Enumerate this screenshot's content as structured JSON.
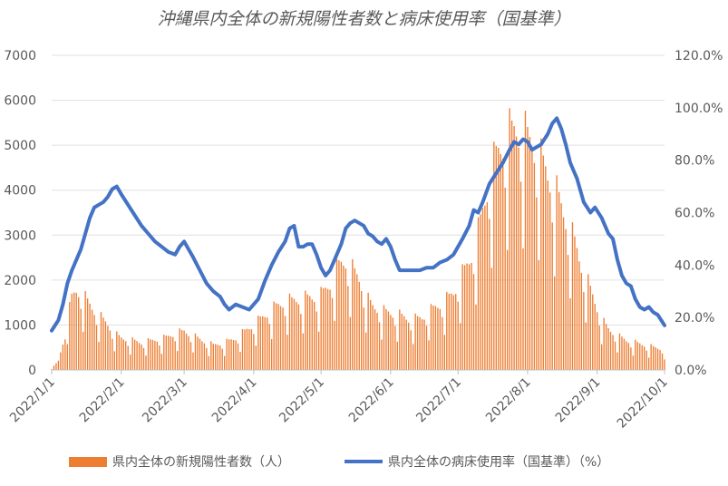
{
  "chart_data": {
    "type": "bar+line",
    "title": "沖縄県内全体の新規陽性者数と病床使用率（国基準）",
    "x_tick_labels": [
      "2022/1/1",
      "2022/2/1",
      "2022/3/1",
      "2022/4/1",
      "2022/5/1",
      "2022/6/1",
      "2022/7/1",
      "2022/8/1",
      "2022/9/1",
      "2022/10/1"
    ],
    "x_tick_days": [
      0,
      31,
      59,
      90,
      120,
      151,
      181,
      212,
      243,
      273
    ],
    "y_left": {
      "ticks": [
        "0",
        "1000",
        "2000",
        "3000",
        "4000",
        "5000",
        "6000",
        "7000"
      ],
      "lim": [
        0,
        7000
      ]
    },
    "y_right": {
      "ticks": [
        "0.0%",
        "20.0%",
        "40.0%",
        "60.0%",
        "80.0%",
        "100.0%",
        "120.0%"
      ],
      "lim": [
        0,
        1.2
      ]
    },
    "bar_series": {
      "name": "県内全体の新規陽性者数（人）",
      "color": "#ED7D31",
      "daily_base": [
        [
          0,
          30
        ],
        [
          3,
          200
        ],
        [
          5,
          600
        ],
        [
          7,
          1100
        ],
        [
          9,
          1600
        ],
        [
          11,
          1750
        ],
        [
          13,
          1700
        ],
        [
          16,
          1500
        ],
        [
          19,
          1300
        ],
        [
          22,
          1150
        ],
        [
          25,
          1000
        ],
        [
          28,
          800
        ],
        [
          31,
          700
        ],
        [
          36,
          650
        ],
        [
          40,
          600
        ],
        [
          45,
          650
        ],
        [
          50,
          700
        ],
        [
          55,
          800
        ],
        [
          59,
          850
        ],
        [
          63,
          750
        ],
        [
          67,
          650
        ],
        [
          72,
          550
        ],
        [
          77,
          600
        ],
        [
          82,
          700
        ],
        [
          86,
          850
        ],
        [
          90,
          1000
        ],
        [
          95,
          1200
        ],
        [
          100,
          1400
        ],
        [
          104,
          1500
        ],
        [
          110,
          1550
        ],
        [
          116,
          1600
        ],
        [
          120,
          1650
        ],
        [
          124,
          1900
        ],
        [
          128,
          2300
        ],
        [
          131,
          2400
        ],
        [
          134,
          2200
        ],
        [
          137,
          2000
        ],
        [
          140,
          1600
        ],
        [
          143,
          1400
        ],
        [
          147,
          1300
        ],
        [
          151,
          1250
        ],
        [
          155,
          1200
        ],
        [
          160,
          1100
        ],
        [
          165,
          1150
        ],
        [
          170,
          1350
        ],
        [
          175,
          1500
        ],
        [
          179,
          1700
        ],
        [
          182,
          2000
        ],
        [
          186,
          2400
        ],
        [
          189,
          2800
        ],
        [
          192,
          3500
        ],
        [
          195,
          4200
        ],
        [
          198,
          4700
        ],
        [
          201,
          5000
        ],
        [
          204,
          5200
        ],
        [
          207,
          5300
        ],
        [
          210,
          5200
        ],
        [
          212,
          5100
        ],
        [
          215,
          4900
        ],
        [
          218,
          4600
        ],
        [
          221,
          4300
        ],
        [
          224,
          4000
        ],
        [
          227,
          3600
        ],
        [
          230,
          3200
        ],
        [
          233,
          2800
        ],
        [
          236,
          2300
        ],
        [
          239,
          1900
        ],
        [
          242,
          1500
        ],
        [
          245,
          1100
        ],
        [
          248,
          900
        ],
        [
          252,
          750
        ],
        [
          256,
          650
        ],
        [
          260,
          600
        ],
        [
          264,
          550
        ],
        [
          268,
          500
        ],
        [
          273,
          450
        ]
      ],
      "weekly_pattern": [
        0.52,
        1.12,
        1.06,
        1.03,
        0.98,
        0.94,
        0.8
      ]
    },
    "line_series": {
      "name": "県内全体の病床使用率（国基準）（%）",
      "color": "#4472C4",
      "points": [
        [
          0,
          0.15
        ],
        [
          3,
          0.19
        ],
        [
          5,
          0.25
        ],
        [
          7,
          0.33
        ],
        [
          9,
          0.38
        ],
        [
          11,
          0.42
        ],
        [
          13,
          0.46
        ],
        [
          15,
          0.52
        ],
        [
          17,
          0.58
        ],
        [
          19,
          0.62
        ],
        [
          21,
          0.63
        ],
        [
          23,
          0.64
        ],
        [
          25,
          0.66
        ],
        [
          27,
          0.69
        ],
        [
          29,
          0.7
        ],
        [
          31,
          0.67
        ],
        [
          34,
          0.63
        ],
        [
          37,
          0.59
        ],
        [
          40,
          0.55
        ],
        [
          43,
          0.52
        ],
        [
          46,
          0.49
        ],
        [
          49,
          0.47
        ],
        [
          52,
          0.45
        ],
        [
          55,
          0.44
        ],
        [
          57,
          0.47
        ],
        [
          59,
          0.49
        ],
        [
          61,
          0.46
        ],
        [
          63,
          0.43
        ],
        [
          66,
          0.38
        ],
        [
          69,
          0.33
        ],
        [
          72,
          0.3
        ],
        [
          75,
          0.28
        ],
        [
          77,
          0.25
        ],
        [
          79,
          0.23
        ],
        [
          82,
          0.25
        ],
        [
          85,
          0.24
        ],
        [
          88,
          0.23
        ],
        [
          90,
          0.25
        ],
        [
          92,
          0.27
        ],
        [
          95,
          0.34
        ],
        [
          98,
          0.4
        ],
        [
          101,
          0.45
        ],
        [
          104,
          0.49
        ],
        [
          106,
          0.54
        ],
        [
          108,
          0.55
        ],
        [
          110,
          0.47
        ],
        [
          112,
          0.47
        ],
        [
          114,
          0.48
        ],
        [
          116,
          0.48
        ],
        [
          118,
          0.44
        ],
        [
          120,
          0.39
        ],
        [
          122,
          0.36
        ],
        [
          124,
          0.38
        ],
        [
          126,
          0.42
        ],
        [
          129,
          0.48
        ],
        [
          131,
          0.54
        ],
        [
          133,
          0.56
        ],
        [
          135,
          0.57
        ],
        [
          137,
          0.56
        ],
        [
          139,
          0.55
        ],
        [
          141,
          0.52
        ],
        [
          143,
          0.51
        ],
        [
          145,
          0.49
        ],
        [
          147,
          0.48
        ],
        [
          149,
          0.5
        ],
        [
          151,
          0.47
        ],
        [
          153,
          0.42
        ],
        [
          155,
          0.38
        ],
        [
          158,
          0.38
        ],
        [
          161,
          0.38
        ],
        [
          164,
          0.38
        ],
        [
          167,
          0.39
        ],
        [
          170,
          0.39
        ],
        [
          173,
          0.41
        ],
        [
          176,
          0.42
        ],
        [
          179,
          0.44
        ],
        [
          181,
          0.47
        ],
        [
          183,
          0.5
        ],
        [
          186,
          0.55
        ],
        [
          188,
          0.61
        ],
        [
          190,
          0.6
        ],
        [
          192,
          0.64
        ],
        [
          195,
          0.71
        ],
        [
          198,
          0.75
        ],
        [
          201,
          0.79
        ],
        [
          204,
          0.84
        ],
        [
          206,
          0.87
        ],
        [
          208,
          0.86
        ],
        [
          210,
          0.88
        ],
        [
          212,
          0.87
        ],
        [
          214,
          0.84
        ],
        [
          216,
          0.85
        ],
        [
          218,
          0.86
        ],
        [
          221,
          0.9
        ],
        [
          223,
          0.94
        ],
        [
          225,
          0.96
        ],
        [
          227,
          0.92
        ],
        [
          229,
          0.86
        ],
        [
          231,
          0.79
        ],
        [
          234,
          0.73
        ],
        [
          237,
          0.64
        ],
        [
          240,
          0.6
        ],
        [
          242,
          0.62
        ],
        [
          245,
          0.58
        ],
        [
          248,
          0.52
        ],
        [
          250,
          0.5
        ],
        [
          252,
          0.42
        ],
        [
          254,
          0.36
        ],
        [
          256,
          0.33
        ],
        [
          258,
          0.32
        ],
        [
          260,
          0.27
        ],
        [
          262,
          0.24
        ],
        [
          264,
          0.23
        ],
        [
          266,
          0.24
        ],
        [
          268,
          0.22
        ],
        [
          270,
          0.21
        ],
        [
          273,
          0.17
        ]
      ]
    }
  }
}
